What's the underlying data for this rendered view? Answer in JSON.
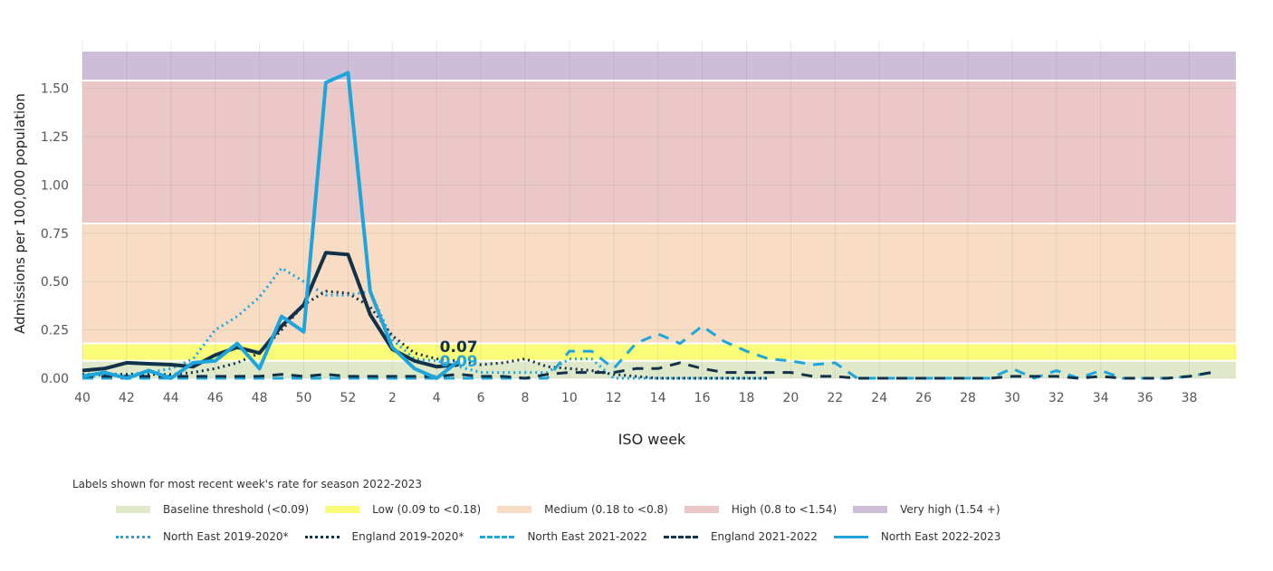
{
  "chart_data": {
    "type": "line",
    "xlabel": "ISO week",
    "ylabel": "Admissions per 100,000 population",
    "ylim": [
      0,
      1.69
    ],
    "yticks": [
      0,
      0.25,
      0.5,
      0.75,
      1.0,
      1.25,
      1.5
    ],
    "ytick_labels": [
      "0.00",
      "0.25",
      "0.50",
      "0.75",
      "1.00",
      "1.25",
      "1.50"
    ],
    "categories": [
      40,
      41,
      42,
      43,
      44,
      45,
      46,
      47,
      48,
      49,
      50,
      51,
      52,
      1,
      2,
      3,
      4,
      5,
      6,
      7,
      8,
      9,
      10,
      11,
      12,
      13,
      14,
      15,
      16,
      17,
      18,
      19,
      20,
      21,
      22,
      23,
      24,
      25,
      26,
      27,
      28,
      29,
      30,
      31,
      32,
      33,
      34,
      35,
      36,
      37,
      38,
      39
    ],
    "xtick_labels": [
      "40",
      "42",
      "44",
      "46",
      "48",
      "50",
      "52",
      "2",
      "4",
      "6",
      "8",
      "10",
      "12",
      "14",
      "16",
      "18",
      "20",
      "22",
      "24",
      "26",
      "28",
      "30",
      "32",
      "34",
      "36",
      "38"
    ],
    "grid": true,
    "bands": [
      {
        "label": "Baseline threshold (<0.09)",
        "from": 0,
        "to": 0.09,
        "color": "#dfe8c9"
      },
      {
        "label": "Low (0.09 to <0.18)",
        "from": 0.09,
        "to": 0.18,
        "color": "#fbfb7a"
      },
      {
        "label": "Medium (0.18 to <0.8)",
        "from": 0.18,
        "to": 0.8,
        "color": "#f9dcc4"
      },
      {
        "label": "High (0.8 to <1.54)",
        "from": 0.8,
        "to": 1.54,
        "color": "#ebc8c7"
      },
      {
        "label": "Very high (1.54 +)",
        "from": 1.54,
        "to": 1.69,
        "color": "#cdbdd9"
      }
    ],
    "series": [
      {
        "name": "North East 2019-2020*",
        "color": "#1ea6dc",
        "style": "dotted",
        "values": [
          0.0,
          0.02,
          0.02,
          0.03,
          0.05,
          0.1,
          0.25,
          0.32,
          0.42,
          0.57,
          0.5,
          0.43,
          0.43,
          0.45,
          0.2,
          0.1,
          0.09,
          0.06,
          0.03,
          0.03,
          0.03,
          0.03,
          0.1,
          0.1,
          0.0,
          0.0,
          0.0,
          0.0,
          0.0,
          0.0,
          0.0,
          0.0,
          null,
          null,
          null,
          null,
          null,
          null,
          null,
          null,
          null,
          null,
          null,
          null,
          null,
          null,
          null,
          null,
          null,
          null,
          null,
          null
        ]
      },
      {
        "name": "England 2019-2020*",
        "color": "#12324a",
        "style": "dotted",
        "values": [
          0.02,
          0.02,
          0.02,
          0.02,
          0.02,
          0.03,
          0.05,
          0.08,
          0.13,
          0.25,
          0.38,
          0.45,
          0.44,
          0.37,
          0.22,
          0.13,
          0.1,
          0.09,
          0.07,
          0.08,
          0.1,
          0.06,
          0.05,
          0.04,
          0.02,
          0.01,
          0.0,
          0.0,
          0.0,
          0.0,
          0.0,
          0.0,
          null,
          null,
          null,
          null,
          null,
          null,
          null,
          null,
          null,
          null,
          null,
          null,
          null,
          null,
          null,
          null,
          null,
          null,
          null,
          null
        ]
      },
      {
        "name": "North East 2021-2022",
        "color": "#1ea6dc",
        "style": "dashed",
        "values": [
          0.0,
          0.0,
          0.0,
          0.0,
          0.0,
          0.0,
          0.0,
          0.0,
          0.0,
          0.0,
          0.0,
          0.0,
          0.0,
          0.0,
          0.0,
          0.0,
          0.0,
          0.0,
          0.0,
          0.0,
          0.0,
          0.0,
          0.14,
          0.14,
          0.05,
          0.18,
          0.23,
          0.18,
          0.27,
          0.19,
          0.14,
          0.1,
          0.09,
          0.07,
          0.08,
          0.0,
          0.0,
          0.0,
          0.0,
          0.0,
          0.0,
          0.0,
          0.05,
          0.0,
          0.04,
          0.0,
          0.04,
          0.0,
          0.0,
          0.0,
          0.01,
          0.03
        ]
      },
      {
        "name": "England 2021-2022",
        "color": "#12324a",
        "style": "dashed",
        "values": [
          0.01,
          0.01,
          0.01,
          0.01,
          0.01,
          0.01,
          0.01,
          0.01,
          0.01,
          0.02,
          0.01,
          0.02,
          0.01,
          0.01,
          0.01,
          0.01,
          0.01,
          0.02,
          0.01,
          0.01,
          0.0,
          0.02,
          0.03,
          0.03,
          0.03,
          0.05,
          0.05,
          0.08,
          0.05,
          0.03,
          0.03,
          0.03,
          0.03,
          0.01,
          0.01,
          0.0,
          0.0,
          0.0,
          0.0,
          0.0,
          0.0,
          0.0,
          0.01,
          0.01,
          0.01,
          0.0,
          0.01,
          0.0,
          0.0,
          0.0,
          0.01,
          0.03
        ]
      },
      {
        "color": "#12324a",
        "style": "solid",
        "values": [
          0.04,
          0.05,
          0.08,
          0.075,
          0.07,
          0.06,
          0.12,
          0.16,
          0.13,
          0.27,
          0.38,
          0.65,
          0.64,
          0.33,
          0.15,
          0.09,
          0.06,
          0.07,
          null,
          null,
          null,
          null,
          null,
          null,
          null,
          null,
          null,
          null,
          null,
          null,
          null,
          null,
          null,
          null,
          null,
          null,
          null,
          null,
          null,
          null,
          null,
          null,
          null,
          null,
          null,
          null,
          null,
          null,
          null,
          null,
          null,
          null
        ]
      },
      {
        "name": "North East 2022-2023",
        "color": "#1ea6dc",
        "style": "solid",
        "values": [
          0.01,
          0.03,
          0.0,
          0.04,
          0.0,
          0.08,
          0.09,
          0.18,
          0.05,
          0.32,
          0.24,
          1.53,
          1.58,
          0.45,
          0.16,
          0.05,
          0.0,
          0.09,
          null,
          null,
          null,
          null,
          null,
          null,
          null,
          null,
          null,
          null,
          null,
          null,
          null,
          null,
          null,
          null,
          null,
          null,
          null,
          null,
          null,
          null,
          null,
          null,
          null,
          null,
          null,
          null,
          null,
          null,
          null,
          null,
          null,
          null
        ]
      }
    ],
    "annotations": [
      {
        "text": "0.07",
        "week": 5,
        "color": "#12324a"
      },
      {
        "text": "0.09",
        "week": 5,
        "color": "#1ea6dc"
      }
    ],
    "legend_note": "Labels shown for most recent week's rate for season 2022-2023",
    "legend_placement": "bottom"
  }
}
